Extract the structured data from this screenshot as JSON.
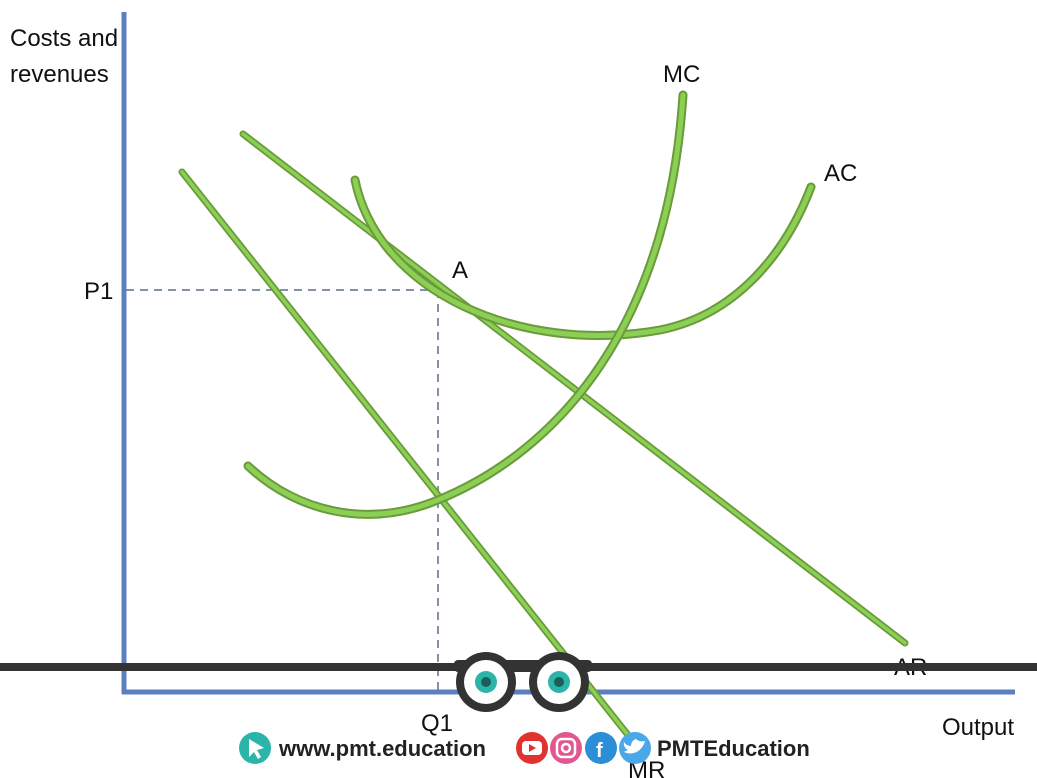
{
  "axes": {
    "y_label_line1": "Costs and",
    "y_label_line2": "revenues",
    "x_label": "Output"
  },
  "curves": {
    "mc": "MC",
    "ac": "AC",
    "ar": "AR",
    "mr": "MR"
  },
  "points": {
    "a": "A",
    "p1": "P1",
    "q1": "Q1"
  },
  "footer": {
    "website": "www.pmt.education",
    "handle": "PMTEducation",
    "icons": [
      "cursor-icon",
      "youtube-icon",
      "instagram-icon",
      "facebook-icon",
      "twitter-icon"
    ]
  },
  "colors": {
    "axis": "#5b7fbf",
    "curve": "#7cc243",
    "curve_edge": "#6a9a3a",
    "dashed": "#5a6f86",
    "bar": "#333333",
    "brand_teal": "#2bb5a9",
    "youtube": "#e0322f",
    "instagram": "#e2578f",
    "facebook": "#2a8fd6",
    "twitter": "#4aa8e8"
  }
}
